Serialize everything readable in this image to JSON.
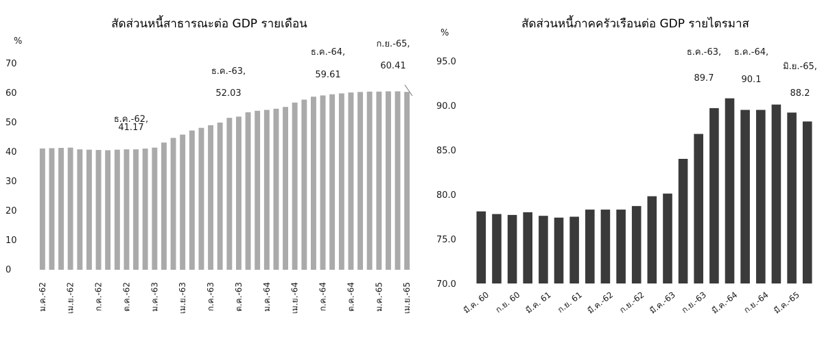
{
  "chart_data": [
    {
      "type": "bar",
      "title": "สัดส่วนหนี้สาธารณะต่อ GDP รายเดือน",
      "ylabel": "%",
      "ylim": [
        0,
        70
      ],
      "yticks": [
        "0",
        "10",
        "20",
        "30",
        "40",
        "50",
        "60",
        "70"
      ],
      "x_labels": [
        "ม.ค.-62",
        "เม.ย.-62",
        "ก.ค.-62",
        "ต.ค.-62",
        "ม.ค.-63",
        "เม.ย.-63",
        "ก.ค.-63",
        "ต.ค.-63",
        "ม.ค.-64",
        "เม.ย.-64",
        "ก.ค.-64",
        "ต.ค.-64",
        "ม.ค.-65",
        "เม.ย.-65",
        "ก.ค.-65"
      ],
      "values": [
        41.2,
        41.3,
        41.4,
        41.5,
        40.9,
        40.8,
        40.7,
        40.6,
        40.8,
        40.9,
        40.9,
        41.17,
        41.5,
        43.2,
        44.8,
        45.9,
        47.3,
        48.2,
        49.1,
        50.0,
        51.6,
        52.03,
        53.5,
        54.0,
        54.3,
        54.7,
        55.3,
        56.8,
        57.8,
        58.8,
        59.2,
        59.61,
        59.9,
        60.2,
        60.4,
        60.5,
        60.5,
        60.6,
        60.6,
        60.41
      ],
      "grid": false,
      "color": "#aaaaaa",
      "annotations": [
        {
          "name": "ธ.ค.-62,",
          "value": "41.17"
        },
        {
          "name": "ธ.ค.-63,",
          "value": "52.03"
        },
        {
          "name": "ธ.ค.-64,",
          "value": "59.61"
        },
        {
          "name": "ก.ย.-65,",
          "value": "60.41"
        }
      ]
    },
    {
      "type": "bar",
      "title": "สัดส่วนหนี้ภาคครัวเรือนต่อ GDP รายไตรมาส",
      "ylabel": "%",
      "ylim": [
        70,
        95
      ],
      "yticks": [
        "70.0",
        "75.0",
        "80.0",
        "85.0",
        "90.0",
        "95.0"
      ],
      "x_labels": [
        "มี.ค. 60",
        "ก.ย. 60",
        "มี.ค. 61",
        "ก.ย. 61",
        "มี.ค.-62",
        "ก.ย.-62",
        "มี.ค.-63",
        "ก.ย.-63",
        "มี.ค.-64",
        "ก.ย.-64",
        "มี.ค.-65"
      ],
      "values": [
        78.1,
        77.8,
        77.7,
        78.0,
        77.6,
        77.4,
        77.5,
        78.3,
        78.3,
        78.3,
        78.7,
        79.8,
        80.1,
        84.0,
        86.8,
        89.7,
        90.8,
        89.5,
        89.5,
        90.1,
        89.2,
        88.2
      ],
      "grid": false,
      "color": "#3a3a3a",
      "annotations": [
        {
          "name": "ธ.ค.-63,",
          "value": "89.7"
        },
        {
          "name": "ธ.ค.-64,",
          "value": "90.1"
        },
        {
          "name": "มิ.ย.-65,",
          "value": "88.2"
        }
      ]
    }
  ]
}
